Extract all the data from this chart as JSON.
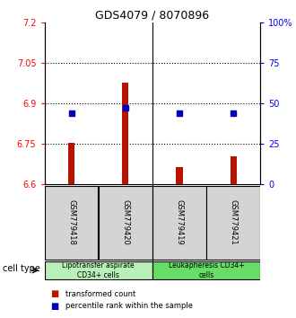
{
  "title": "GDS4079 / 8070896",
  "samples": [
    "GSM779418",
    "GSM779420",
    "GSM779419",
    "GSM779421"
  ],
  "red_values": [
    6.755,
    6.975,
    6.665,
    6.705
  ],
  "blue_values": [
    6.865,
    6.885,
    6.865,
    6.865
  ],
  "ylim_left": [
    6.6,
    7.2
  ],
  "ylim_right": [
    0,
    100
  ],
  "yticks_left": [
    6.6,
    6.75,
    6.9,
    7.05,
    7.2
  ],
  "yticks_right": [
    0,
    25,
    50,
    75,
    100
  ],
  "ytick_labels_left": [
    "6.6",
    "6.75",
    "6.9",
    "7.05",
    "7.2"
  ],
  "ytick_labels_right": [
    "0",
    "25",
    "50",
    "75",
    "100%"
  ],
  "hlines": [
    6.75,
    6.9,
    7.05
  ],
  "cell_types": [
    {
      "label": "Lipotransfer aspirate\nCD34+ cells",
      "samples": [
        0,
        1
      ],
      "color": "#b8f0b8"
    },
    {
      "label": "Leukapheresis CD34+\ncells",
      "samples": [
        2,
        3
      ],
      "color": "#66dd66"
    }
  ],
  "cell_type_label": "cell type",
  "legend_red": "transformed count",
  "legend_blue": "percentile rank within the sample",
  "bar_color": "#bb1100",
  "blue_color": "#0000bb",
  "bar_bottom": 6.6,
  "bar_width": 0.12,
  "xlim": [
    -0.5,
    3.5
  ]
}
